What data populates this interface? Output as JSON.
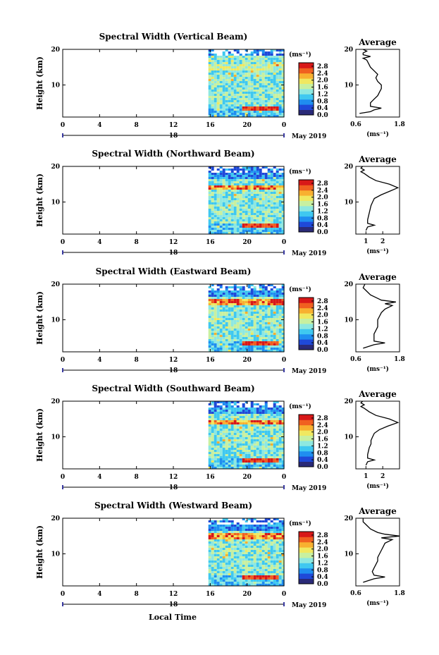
{
  "figure": {
    "date_label": "May 2019",
    "xlabel": "Local Time",
    "ylabel": "Height (km)",
    "unit_label": "(ms⁻¹)",
    "average_title": "Average"
  },
  "chart_data": {
    "type": "heatmap",
    "x_ticks": [
      "0",
      "4",
      "8",
      "12",
      "16",
      "20",
      "0"
    ],
    "x_range_hours": [
      0,
      24
    ],
    "data_start_hour": 15.8,
    "day_axis_label": "18",
    "y_ticks": [
      "10",
      "20"
    ],
    "y_range_km": [
      1,
      20
    ],
    "colorbar_ticks": [
      "0.0",
      "0.4",
      "0.8",
      "1.2",
      "1.6",
      "2.0",
      "2.4",
      "2.8"
    ],
    "colorbar_range": [
      0,
      3.0
    ],
    "colorscale": [
      "#2a2a78",
      "#1f49d8",
      "#1f8ef0",
      "#3fc8f0",
      "#8ee8e0",
      "#c8f0a0",
      "#f0e860",
      "#f8b030",
      "#f06020",
      "#d81818"
    ],
    "panels": [
      {
        "title": "Spectral Width (Vertical Beam)",
        "avg_xticks": [
          "0.6",
          "1.8"
        ],
        "avg_xrange": [
          0.6,
          1.8
        ],
        "profile": {
          "height": [
            2,
            2.5,
            3,
            3.5,
            4,
            5,
            6,
            7,
            8,
            9,
            10,
            11,
            12,
            13,
            14,
            15,
            16,
            17,
            17.5,
            18,
            18.5,
            19,
            19.5,
            20
          ],
          "value": [
            0.7,
            1.0,
            1.1,
            1.3,
            1.0,
            1.0,
            1.1,
            1.2,
            1.25,
            1.3,
            1.3,
            1.2,
            1.15,
            1.2,
            1.1,
            1.0,
            0.95,
            0.9,
            0.8,
            1.0,
            0.8,
            0.8,
            0.9,
            0.8
          ]
        }
      },
      {
        "title": "Spectral Width (Northward Beam)",
        "avg_xticks": [
          "1",
          "2"
        ],
        "avg_xrange": [
          0.4,
          3.0
        ],
        "profile": {
          "height": [
            2,
            3,
            3.5,
            4,
            5,
            6,
            7,
            8,
            9,
            10,
            11,
            12,
            13,
            14,
            15,
            16,
            17,
            18,
            18.5,
            19,
            19.5,
            20
          ],
          "value": [
            1.0,
            1.1,
            1.5,
            1.1,
            1.1,
            1.15,
            1.2,
            1.25,
            1.3,
            1.4,
            1.5,
            1.9,
            2.4,
            2.9,
            2.4,
            1.6,
            1.2,
            0.9,
            0.7,
            0.9,
            0.7,
            0.8
          ]
        }
      },
      {
        "title": "Spectral Width (Eastward Beam)",
        "avg_xticks": [
          "0.6",
          "1.8"
        ],
        "avg_xrange": [
          0.6,
          1.8
        ],
        "profile": {
          "height": [
            2,
            3,
            3.5,
            4,
            5,
            6,
            7,
            8,
            9,
            10,
            11,
            12,
            13,
            14,
            14.5,
            15,
            15.5,
            16,
            17,
            18,
            19,
            20
          ],
          "value": [
            0.8,
            1.1,
            1.4,
            1.1,
            1.1,
            1.1,
            1.15,
            1.2,
            1.2,
            1.2,
            1.25,
            1.3,
            1.4,
            1.6,
            1.4,
            1.7,
            1.3,
            1.2,
            1.0,
            0.9,
            0.8,
            0.85
          ]
        }
      },
      {
        "title": "Spectral Width (Southward Beam)",
        "avg_xticks": [
          "1",
          "2"
        ],
        "avg_xrange": [
          0.4,
          3.0
        ],
        "profile": {
          "height": [
            2,
            3,
            3.5,
            4,
            5,
            6,
            7,
            8,
            9,
            10,
            11,
            12,
            13,
            14,
            15,
            16,
            17,
            18,
            18.5,
            19,
            19.5,
            20
          ],
          "value": [
            1.0,
            1.1,
            1.5,
            1.1,
            1.1,
            1.15,
            1.2,
            1.3,
            1.3,
            1.4,
            1.5,
            1.8,
            2.3,
            2.9,
            2.4,
            1.6,
            1.2,
            0.9,
            0.7,
            0.9,
            0.7,
            0.8
          ]
        }
      },
      {
        "title": "Spectral Width (Westward Beam)",
        "avg_xticks": [
          "0.6",
          "1.8"
        ],
        "avg_xrange": [
          0.6,
          1.8
        ],
        "profile": {
          "height": [
            2,
            3,
            3.5,
            4,
            5,
            6,
            7,
            8,
            9,
            10,
            11,
            12,
            13,
            14,
            14.5,
            15,
            15.5,
            16,
            17,
            18,
            19,
            20
          ],
          "value": [
            0.8,
            1.1,
            1.4,
            1.1,
            1.05,
            1.1,
            1.15,
            1.2,
            1.2,
            1.25,
            1.3,
            1.35,
            1.4,
            1.6,
            1.3,
            1.8,
            1.4,
            1.2,
            1.0,
            0.9,
            0.8,
            0.8
          ]
        }
      }
    ]
  }
}
